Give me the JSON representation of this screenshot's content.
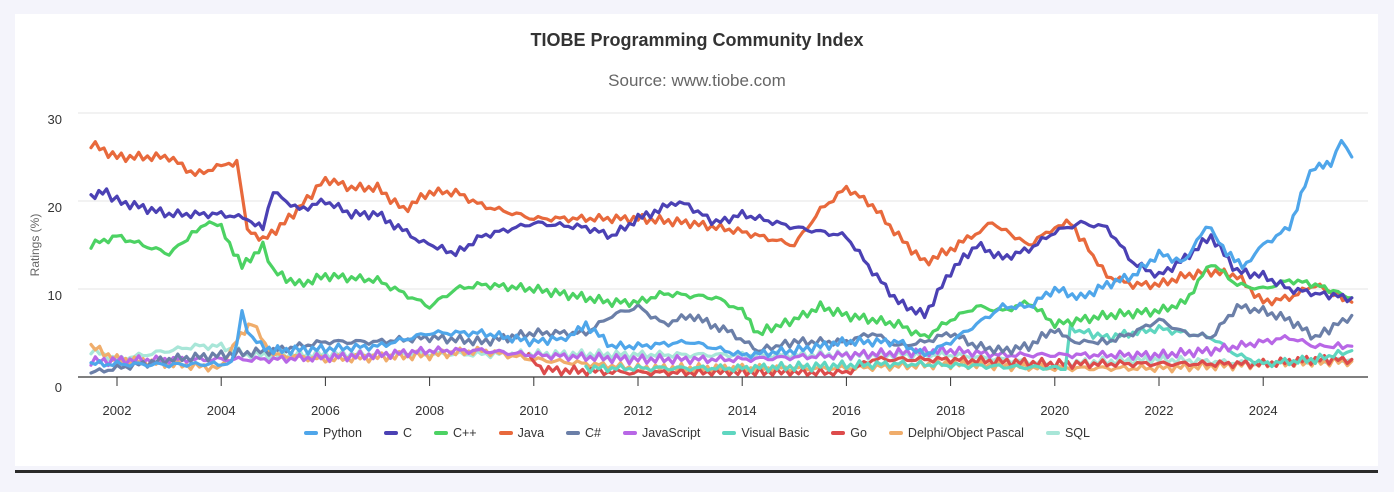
{
  "chart_data": {
    "type": "line",
    "title": "TIOBE Programming Community Index",
    "subtitle": "Source: www.tiobe.com",
    "xlabel": "",
    "ylabel": "Ratings (%)",
    "xlim": [
      2001,
      2026
    ],
    "ylim": [
      0,
      30
    ],
    "x_ticks": [
      "2002",
      "2004",
      "2006",
      "2008",
      "2010",
      "2012",
      "2014",
      "2016",
      "2018",
      "2020",
      "2022",
      "2024"
    ],
    "y_ticks": [
      "0",
      "10",
      "20",
      "30"
    ],
    "grid": "horizontal",
    "legend": "bottom",
    "series": [
      {
        "name": "Python",
        "color": "#4fa6ea",
        "points": [
          [
            2001.5,
            1.5
          ],
          [
            2003,
            1.4
          ],
          [
            2004.2,
            1.5
          ],
          [
            2004.4,
            7
          ],
          [
            2004.6,
            4.2
          ],
          [
            2005,
            3
          ],
          [
            2006,
            3.2
          ],
          [
            2007,
            3.5
          ],
          [
            2008,
            5
          ],
          [
            2009,
            5
          ],
          [
            2009.5,
            4.5
          ],
          [
            2010,
            4
          ],
          [
            2010.7,
            4.5
          ],
          [
            2011,
            6
          ],
          [
            2011.5,
            3.5
          ],
          [
            2012,
            3.5
          ],
          [
            2013,
            4
          ],
          [
            2014,
            2.5
          ],
          [
            2015,
            3
          ],
          [
            2016,
            4
          ],
          [
            2017,
            4
          ],
          [
            2017.5,
            2.5
          ],
          [
            2018,
            4
          ],
          [
            2018.5,
            6
          ],
          [
            2019,
            8
          ],
          [
            2019.5,
            8
          ],
          [
            2020,
            10
          ],
          [
            2020.5,
            9
          ],
          [
            2021,
            10.5
          ],
          [
            2021.5,
            11.5
          ],
          [
            2022,
            14
          ],
          [
            2022.5,
            13
          ],
          [
            2022.8,
            16.5
          ],
          [
            2023,
            17
          ],
          [
            2023.3,
            14
          ],
          [
            2023.6,
            12.5
          ],
          [
            2024,
            15
          ],
          [
            2024.5,
            17
          ],
          [
            2024.8,
            22
          ],
          [
            2025,
            24
          ],
          [
            2025.3,
            24
          ],
          [
            2025.5,
            27
          ],
          [
            2025.7,
            25
          ]
        ]
      },
      {
        "name": "C",
        "color": "#4b41b4",
        "points": [
          [
            2001.5,
            20.5
          ],
          [
            2001.8,
            21
          ],
          [
            2002,
            20
          ],
          [
            2003,
            18.5
          ],
          [
            2004,
            18.5
          ],
          [
            2004.5,
            18
          ],
          [
            2004.8,
            17
          ],
          [
            2005,
            21
          ],
          [
            2005.5,
            19
          ],
          [
            2006,
            20
          ],
          [
            2006.5,
            18.5
          ],
          [
            2007,
            18.5
          ],
          [
            2007.8,
            15.5
          ],
          [
            2008.5,
            14
          ],
          [
            2009,
            16
          ],
          [
            2010,
            17.5
          ],
          [
            2011,
            17
          ],
          [
            2011.5,
            16
          ],
          [
            2012,
            18
          ],
          [
            2012.8,
            20
          ],
          [
            2013.5,
            17.5
          ],
          [
            2014,
            18.5
          ],
          [
            2015,
            17
          ],
          [
            2015.5,
            16.5
          ],
          [
            2016,
            16
          ],
          [
            2016.5,
            12
          ],
          [
            2017,
            8.5
          ],
          [
            2017.5,
            7
          ],
          [
            2018,
            12
          ],
          [
            2018.5,
            15
          ],
          [
            2019,
            13.5
          ],
          [
            2019.5,
            14.5
          ],
          [
            2020,
            16.5
          ],
          [
            2020.5,
            17.5
          ],
          [
            2021,
            17
          ],
          [
            2021.5,
            13
          ],
          [
            2022,
            11.5
          ],
          [
            2022.5,
            13.5
          ],
          [
            2023,
            16
          ],
          [
            2023.5,
            12
          ],
          [
            2024,
            11.5
          ],
          [
            2024.5,
            10
          ],
          [
            2025,
            9.5
          ],
          [
            2025.7,
            9
          ]
        ]
      },
      {
        "name": "C++",
        "color": "#4cd263",
        "points": [
          [
            2001.5,
            15
          ],
          [
            2002,
            16
          ],
          [
            2003,
            14
          ],
          [
            2003.7,
            17.5
          ],
          [
            2004,
            17
          ],
          [
            2004.4,
            12.5
          ],
          [
            2004.8,
            15
          ],
          [
            2005,
            12
          ],
          [
            2005.5,
            10.5
          ],
          [
            2006,
            11.5
          ],
          [
            2007,
            11
          ],
          [
            2008,
            8
          ],
          [
            2008.5,
            10
          ],
          [
            2009,
            10.5
          ],
          [
            2010,
            10
          ],
          [
            2011,
            9
          ],
          [
            2011.5,
            8.5
          ],
          [
            2012,
            8.5
          ],
          [
            2012.5,
            9.5
          ],
          [
            2013.5,
            9
          ],
          [
            2014,
            7.5
          ],
          [
            2014.3,
            5
          ],
          [
            2015,
            6.5
          ],
          [
            2015.5,
            8
          ],
          [
            2016,
            7
          ],
          [
            2017,
            6
          ],
          [
            2017.5,
            4.5
          ],
          [
            2018,
            6.5
          ],
          [
            2018.5,
            8
          ],
          [
            2019,
            7.5
          ],
          [
            2019.5,
            8.5
          ],
          [
            2020,
            6
          ],
          [
            2021,
            7
          ],
          [
            2022,
            7.5
          ],
          [
            2022.5,
            8.5
          ],
          [
            2023,
            13
          ],
          [
            2023.5,
            10.5
          ],
          [
            2024,
            10
          ],
          [
            2024.5,
            11
          ],
          [
            2025,
            10.5
          ],
          [
            2025.7,
            9
          ]
        ]
      },
      {
        "name": "Java",
        "color": "#e8693c",
        "points": [
          [
            2001.5,
            26.5
          ],
          [
            2002,
            25
          ],
          [
            2003,
            25
          ],
          [
            2003.5,
            23
          ],
          [
            2004,
            24
          ],
          [
            2004.3,
            24.5
          ],
          [
            2004.5,
            17
          ],
          [
            2004.8,
            15.5
          ],
          [
            2005.3,
            18
          ],
          [
            2006,
            22.5
          ],
          [
            2006.5,
            21.5
          ],
          [
            2007,
            21.5
          ],
          [
            2007.5,
            19
          ],
          [
            2008,
            21
          ],
          [
            2008.5,
            21
          ],
          [
            2009,
            19.5
          ],
          [
            2010,
            18
          ],
          [
            2011,
            18
          ],
          [
            2012,
            18
          ],
          [
            2013,
            17.5
          ],
          [
            2014,
            16.5
          ],
          [
            2015,
            15
          ],
          [
            2015.5,
            19
          ],
          [
            2016,
            21.5
          ],
          [
            2016.5,
            19.5
          ],
          [
            2017,
            16
          ],
          [
            2017.5,
            13
          ],
          [
            2018,
            14.5
          ],
          [
            2018.8,
            17.5
          ],
          [
            2019.5,
            15
          ],
          [
            2020,
            17
          ],
          [
            2020.3,
            17.5
          ],
          [
            2021,
            11.5
          ],
          [
            2021.5,
            10.5
          ],
          [
            2022,
            10.5
          ],
          [
            2022.5,
            11.5
          ],
          [
            2023,
            12
          ],
          [
            2023.5,
            11.5
          ],
          [
            2024,
            8.5
          ],
          [
            2024.5,
            9
          ],
          [
            2025,
            10.5
          ],
          [
            2025.7,
            8.5
          ]
        ]
      },
      {
        "name": "C#",
        "color": "#6b7fa8",
        "points": [
          [
            2001.5,
            0.5
          ],
          [
            2002,
            1
          ],
          [
            2003,
            2
          ],
          [
            2004,
            2.5
          ],
          [
            2005,
            3
          ],
          [
            2006,
            4
          ],
          [
            2007,
            4
          ],
          [
            2008,
            4.5
          ],
          [
            2009,
            4
          ],
          [
            2010,
            5
          ],
          [
            2011,
            5
          ],
          [
            2011.5,
            7
          ],
          [
            2012,
            8
          ],
          [
            2012.5,
            6
          ],
          [
            2013,
            7
          ],
          [
            2013.8,
            5
          ],
          [
            2014.3,
            3
          ],
          [
            2015,
            4
          ],
          [
            2016,
            4
          ],
          [
            2016.5,
            5
          ],
          [
            2017,
            3.5
          ],
          [
            2017.5,
            4
          ],
          [
            2018,
            5
          ],
          [
            2018.5,
            3.5
          ],
          [
            2019,
            3
          ],
          [
            2019.5,
            3.5
          ],
          [
            2020,
            5.5
          ],
          [
            2020.3,
            4
          ],
          [
            2021,
            4
          ],
          [
            2021.5,
            5
          ],
          [
            2022,
            6.5
          ],
          [
            2022.5,
            5
          ],
          [
            2023,
            4.5
          ],
          [
            2023.5,
            8
          ],
          [
            2024,
            7.5
          ],
          [
            2024.5,
            6.5
          ],
          [
            2025,
            4.5
          ],
          [
            2025.7,
            7
          ]
        ]
      },
      {
        "name": "JavaScript",
        "color": "#b867e6",
        "points": [
          [
            2001.5,
            1.8
          ],
          [
            2003,
            2
          ],
          [
            2005,
            2
          ],
          [
            2007,
            2.5
          ],
          [
            2008,
            3
          ],
          [
            2009,
            3
          ],
          [
            2010,
            2.5
          ],
          [
            2012,
            2
          ],
          [
            2014,
            2
          ],
          [
            2016,
            2.5
          ],
          [
            2018,
            3
          ],
          [
            2019,
            2.5
          ],
          [
            2020,
            2.5
          ],
          [
            2021,
            2.5
          ],
          [
            2022,
            2.5
          ],
          [
            2023,
            3
          ],
          [
            2023.5,
            3.5
          ],
          [
            2024,
            4
          ],
          [
            2024.5,
            4.5
          ],
          [
            2025,
            3.5
          ],
          [
            2025.7,
            3.5
          ]
        ]
      },
      {
        "name": "Visual Basic",
        "color": "#5fd6c0",
        "points": [
          [
            2011,
            1
          ],
          [
            2014,
            1
          ],
          [
            2017,
            1.5
          ],
          [
            2020.2,
            1
          ],
          [
            2020.3,
            5.5
          ],
          [
            2021,
            4.5
          ],
          [
            2022,
            5.5
          ],
          [
            2022.5,
            5
          ],
          [
            2023,
            4.5
          ],
          [
            2023.5,
            2.5
          ],
          [
            2024,
            1.5
          ],
          [
            2025,
            2
          ],
          [
            2025.7,
            3
          ]
        ]
      },
      {
        "name": "Go",
        "color": "#dd4b4b",
        "points": [
          [
            2009.9,
            2.5
          ],
          [
            2010.2,
            0.8
          ],
          [
            2012,
            0.5
          ],
          [
            2014,
            0.5
          ],
          [
            2016,
            0.5
          ],
          [
            2016.5,
            2
          ],
          [
            2018,
            2
          ],
          [
            2020,
            1.5
          ],
          [
            2022,
            1.5
          ],
          [
            2024,
            1.5
          ],
          [
            2025,
            2
          ],
          [
            2025.7,
            2
          ]
        ]
      },
      {
        "name": "Delphi/Object Pascal",
        "color": "#f0ad6b",
        "points": [
          [
            2001.5,
            3.5
          ],
          [
            2002,
            2
          ],
          [
            2003,
            1.5
          ],
          [
            2004,
            1
          ],
          [
            2004.3,
            4.5
          ],
          [
            2004.6,
            6
          ],
          [
            2005,
            2.5
          ],
          [
            2006,
            2
          ],
          [
            2008,
            2.5
          ],
          [
            2009,
            3
          ],
          [
            2010,
            2
          ],
          [
            2012,
            1
          ],
          [
            2014,
            1
          ],
          [
            2016,
            1
          ],
          [
            2018,
            1.5
          ],
          [
            2020,
            1
          ],
          [
            2022,
            1
          ],
          [
            2024,
            1.5
          ],
          [
            2025.7,
            1.8
          ]
        ]
      },
      {
        "name": "SQL",
        "color": "#a8e6d8",
        "points": [
          [
            2001.5,
            3
          ],
          [
            2002,
            2
          ],
          [
            2003,
            3
          ],
          [
            2003.5,
            3.5
          ],
          [
            2004,
            3.5
          ],
          [
            2004.5,
            2.5
          ],
          [
            2006,
            2.6
          ],
          [
            2010,
            2.6
          ],
          [
            2014,
            2.5
          ],
          [
            2018,
            2.5
          ],
          [
            2020,
            1.5
          ],
          [
            2022,
            2
          ],
          [
            2024,
            1.5
          ],
          [
            2025.7,
            2
          ]
        ]
      }
    ]
  }
}
